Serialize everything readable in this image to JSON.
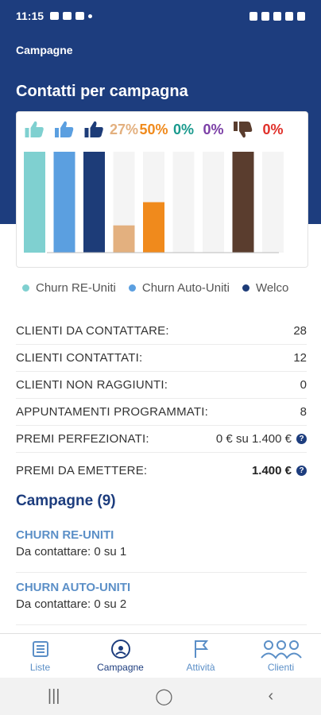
{
  "status_bar": {
    "time": "11:15"
  },
  "app": {
    "title": "Campagne"
  },
  "section": {
    "title": "Contatti per campagna"
  },
  "chart_data": {
    "type": "bar",
    "ylim": [
      0,
      100
    ],
    "bars": [
      {
        "top_type": "thumb-up",
        "top_label": "",
        "color": "#7fd0d0",
        "value": 100
      },
      {
        "top_type": "thumb-up",
        "top_label": "",
        "color": "#5b9fe0",
        "value": 100
      },
      {
        "top_type": "thumb-up",
        "top_label": "",
        "color": "#1d3c78",
        "value": 100
      },
      {
        "top_type": "percent",
        "top_label": "27%",
        "color": "#e3b07f",
        "value": 27
      },
      {
        "top_type": "percent",
        "top_label": "50%",
        "color": "#f08a1c",
        "value": 50
      },
      {
        "top_type": "percent",
        "top_label": "0%",
        "color": "#1a9a8e",
        "value": 0
      },
      {
        "top_type": "percent",
        "top_label": "0%",
        "color": "#7b3fa6",
        "value": 0
      },
      {
        "top_type": "thumb-down",
        "top_label": "",
        "color": "#5a3d2e",
        "value": 100
      },
      {
        "top_type": "percent",
        "top_label": "0%",
        "color": "#e0302a",
        "value": 0
      }
    ]
  },
  "legend": [
    {
      "label": "Churn RE-Uniti",
      "color": "#7fd0d0"
    },
    {
      "label": "Churn Auto-Uniti",
      "color": "#5b9fe0"
    },
    {
      "label": "Welco",
      "color": "#1d3c78"
    }
  ],
  "stats": [
    {
      "label": "CLIENTI DA CONTATTARE:",
      "value": "28",
      "help": false,
      "bold": false
    },
    {
      "label": "CLIENTI CONTATTATI:",
      "value": "12",
      "help": false,
      "bold": false
    },
    {
      "label": "CLIENTI NON RAGGIUNTI:",
      "value": "0",
      "help": false,
      "bold": false
    },
    {
      "label": "APPUNTAMENTI PROGRAMMATI:",
      "value": "8",
      "help": false,
      "bold": false
    },
    {
      "label": "PREMI PERFEZIONATI:",
      "value": "0 € su 1.400 €",
      "help": true,
      "bold": false
    },
    {
      "label": "PREMI DA EMETTERE:",
      "value": "1.400 €",
      "help": true,
      "bold": true
    }
  ],
  "campaigns": {
    "title": "Campagne (9)",
    "items": [
      {
        "name": "CHURN RE-UNITI",
        "sub": "Da contattare: 0 su 1"
      },
      {
        "name": "CHURN AUTO-UNITI",
        "sub": "Da contattare: 0 su 2"
      }
    ]
  },
  "bottom_nav": [
    {
      "label": "Liste",
      "icon": "list-icon",
      "active": false
    },
    {
      "label": "Campagne",
      "icon": "campaign-icon",
      "active": true
    },
    {
      "label": "Attività",
      "icon": "flag-icon",
      "active": false
    },
    {
      "label": "Clienti",
      "icon": "people-icon",
      "active": false
    }
  ],
  "system_nav": {
    "recent": "|||",
    "home": "◯",
    "back": "‹"
  }
}
